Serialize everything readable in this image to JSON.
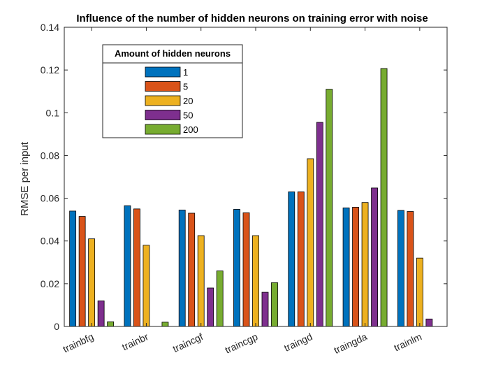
{
  "chart_data": {
    "type": "bar",
    "title": "Influence of the number of hidden neurons on training error with noise",
    "xlabel": "",
    "ylabel": "RMSE per input",
    "ylim": [
      0,
      0.14
    ],
    "yticks": [
      0,
      0.02,
      0.04,
      0.06,
      0.08,
      0.1,
      0.12,
      0.14
    ],
    "ytick_labels": [
      "0",
      "0.02",
      "0.04",
      "0.06",
      "0.08",
      "0.1",
      "0.12",
      "0.14"
    ],
    "categories": [
      "trainbfg",
      "trainbr",
      "traincgf",
      "traincgp",
      "traingd",
      "traingda",
      "trainlm"
    ],
    "legend": {
      "title": "Amount of hidden neurons",
      "placement": "top-left"
    },
    "grid": false,
    "series": [
      {
        "name": "1",
        "color": "#0072BD",
        "values": [
          0.054,
          0.0565,
          0.0545,
          0.0548,
          0.063,
          0.0555,
          0.0543
        ]
      },
      {
        "name": "5",
        "color": "#D95319",
        "values": [
          0.0515,
          0.055,
          0.053,
          0.0532,
          0.063,
          0.0558,
          0.0538
        ]
      },
      {
        "name": "20",
        "color": "#EDB120",
        "values": [
          0.041,
          0.038,
          0.0425,
          0.0425,
          0.0785,
          0.058,
          0.032
        ]
      },
      {
        "name": "50",
        "color": "#7E2F8E",
        "values": [
          0.012,
          0.0,
          0.018,
          0.016,
          0.0955,
          0.0648,
          0.0035
        ]
      },
      {
        "name": "200",
        "color": "#77AC30",
        "values": [
          0.0022,
          0.002,
          0.026,
          0.0205,
          0.111,
          0.1207,
          0.0
        ]
      }
    ]
  }
}
